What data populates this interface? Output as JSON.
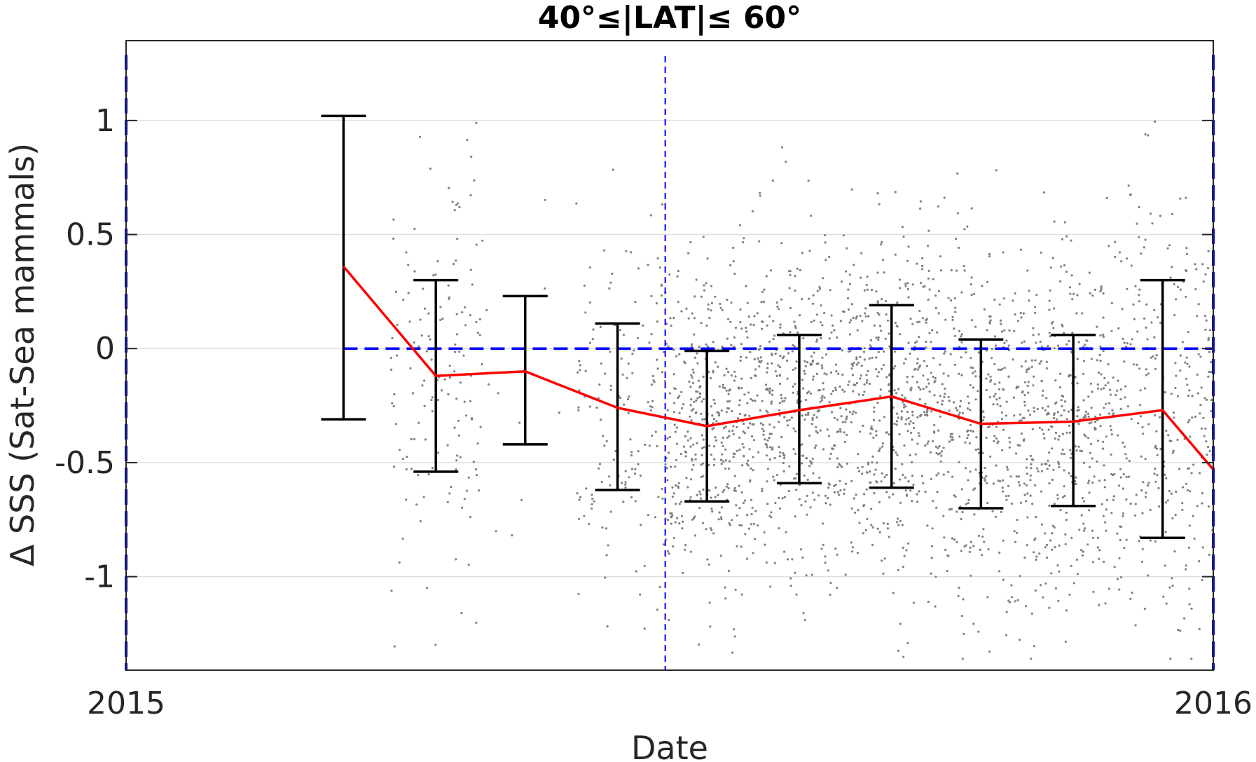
{
  "chart_data": {
    "type": "line",
    "title": "40°≤|LAT|≤ 60°",
    "xlabel": "Date",
    "ylabel": "Δ SSS (Sat-Sea mammals)",
    "xlim": [
      "2015-01-01",
      "2016-01-01"
    ],
    "ylim": [
      -1.41,
      1.35
    ],
    "x_ticks": [
      {
        "value": "2015-01-01",
        "label": "2015"
      },
      {
        "value": "2016-01-01",
        "label": "2016"
      }
    ],
    "y_ticks": [
      {
        "value": 1,
        "label": "1"
      },
      {
        "value": 0.5,
        "label": "0.5"
      },
      {
        "value": 0,
        "label": "0"
      },
      {
        "value": -0.5,
        "label": "-0.5"
      },
      {
        "value": -1,
        "label": "-1"
      }
    ],
    "grid": "horizontal",
    "mean_line": {
      "color": "#ff0000",
      "points": [
        {
          "x": "2015-03-15",
          "y": 0.36
        },
        {
          "x": "2015-04-15",
          "y": -0.12
        },
        {
          "x": "2015-05-15",
          "y": -0.1
        },
        {
          "x": "2015-06-15",
          "y": -0.26
        },
        {
          "x": "2015-07-15",
          "y": -0.34
        },
        {
          "x": "2015-08-15",
          "y": -0.27
        },
        {
          "x": "2015-09-15",
          "y": -0.21
        },
        {
          "x": "2015-10-15",
          "y": -0.33
        },
        {
          "x": "2015-11-15",
          "y": -0.32
        },
        {
          "x": "2015-12-15",
          "y": -0.27
        },
        {
          "x": "2016-01-01",
          "y": -0.53
        }
      ]
    },
    "error_bars": {
      "color": "#000000",
      "bars": [
        {
          "x": "2015-03-15",
          "low": -0.31,
          "high": 1.02
        },
        {
          "x": "2015-04-15",
          "low": -0.54,
          "high": 0.3
        },
        {
          "x": "2015-05-15",
          "low": -0.42,
          "high": 0.23
        },
        {
          "x": "2015-06-15",
          "low": -0.62,
          "high": 0.11
        },
        {
          "x": "2015-07-15",
          "low": -0.67,
          "high": -0.01
        },
        {
          "x": "2015-08-15",
          "low": -0.59,
          "high": 0.06
        },
        {
          "x": "2015-09-15",
          "low": -0.61,
          "high": 0.19
        },
        {
          "x": "2015-10-15",
          "low": -0.7,
          "high": 0.04
        },
        {
          "x": "2015-11-15",
          "low": -0.69,
          "high": 0.06
        },
        {
          "x": "2015-12-15",
          "low": -0.83,
          "high": 0.3
        }
      ]
    },
    "zero_line": {
      "y": 0,
      "from": "2015-03-15",
      "to": "2016-01-01",
      "color": "#0000ff",
      "style": "dashed"
    },
    "vertical_lines": [
      {
        "x": "2015-01-01",
        "color": "#0000ff",
        "style": "dashed"
      },
      {
        "x": "2015-07-01",
        "color": "#0000ff",
        "style": "dashed"
      },
      {
        "x": "2016-01-01",
        "color": "#0000ff",
        "style": "dashed"
      }
    ],
    "scatter": {
      "color": "#808080",
      "groups": [
        {
          "start": "2015-03-31",
          "end": "2015-05-01",
          "count": 150,
          "mean": -0.15,
          "sd": 0.42
        },
        {
          "start": "2015-05-01",
          "end": "2015-06-01",
          "count": 10,
          "mean": -0.1,
          "sd": 0.35
        },
        {
          "start": "2015-06-01",
          "end": "2015-07-01",
          "count": 150,
          "mean": -0.28,
          "sd": 0.38
        },
        {
          "start": "2015-07-01",
          "end": "2015-08-01",
          "count": 430,
          "mean": -0.34,
          "sd": 0.36
        },
        {
          "start": "2015-08-01",
          "end": "2015-09-01",
          "count": 420,
          "mean": -0.27,
          "sd": 0.36
        },
        {
          "start": "2015-09-01",
          "end": "2015-10-01",
          "count": 420,
          "mean": -0.22,
          "sd": 0.4
        },
        {
          "start": "2015-10-01",
          "end": "2015-11-01",
          "count": 380,
          "mean": -0.33,
          "sd": 0.4
        },
        {
          "start": "2015-11-01",
          "end": "2015-12-01",
          "count": 380,
          "mean": -0.32,
          "sd": 0.4
        },
        {
          "start": "2015-12-01",
          "end": "2016-01-01",
          "count": 280,
          "mean": -0.27,
          "sd": 0.5
        }
      ]
    }
  }
}
